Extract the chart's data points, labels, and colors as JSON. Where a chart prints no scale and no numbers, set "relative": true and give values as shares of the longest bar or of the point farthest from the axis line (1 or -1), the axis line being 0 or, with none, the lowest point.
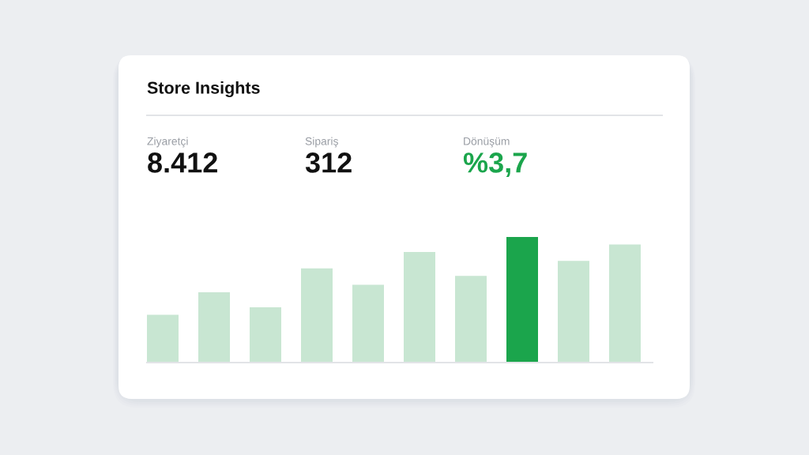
{
  "chart_data": {
    "type": "bar",
    "title": "Store Insights",
    "annotations": [
      "Ziyaretçi",
      "8.412",
      "Sipariş",
      "312",
      "Dönüşüm",
      "%3,7"
    ],
    "categories": [
      null,
      null,
      null,
      null,
      null,
      null,
      null,
      null,
      null,
      null
    ],
    "values": [
      0.38,
      0.56,
      0.44,
      0.75,
      0.62,
      0.88,
      0.69,
      1.0,
      0.81,
      0.94
    ],
    "colors": [
      "#c8e6d2",
      "#c8e6d2",
      "#c8e6d2",
      "#c8e6d2",
      "#c8e6d2",
      "#c8e6d2",
      "#c8e6d2",
      "#1ba54c",
      "#c8e6d2",
      "#c8e6d2"
    ],
    "relative": true
  }
}
